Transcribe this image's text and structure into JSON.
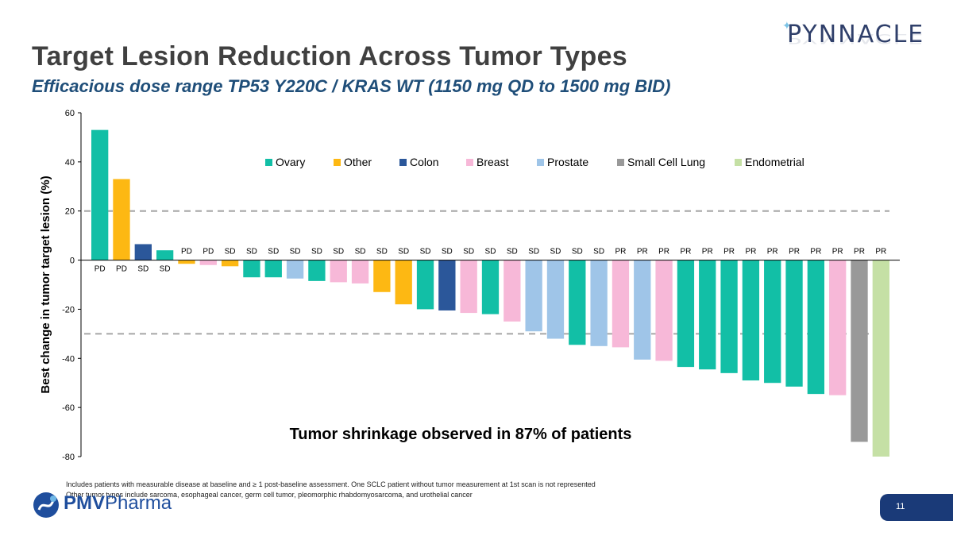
{
  "page": {
    "title": "Target Lesion Reduction Across Tumor Types",
    "subtitle": "Efficacious dose range TP53 Y220C / KRAS WT (1150 mg QD to 1500 mg BID)",
    "footnote_1": "Includes patients with measurable disease at baseline and ≥ 1 post-baseline assessment. One SCLC patient without tumor measurement at 1st scan is not represented",
    "footnote_2": "Other tumor types include sarcoma, esophageal cancer, germ cell tumor, pleomorphic rhabdomyosarcoma, and urothelial cancer",
    "page_number": "11",
    "logo_top": "PYNNACLE",
    "logo_bottom_strong": "PMV",
    "logo_bottom_rest": "Pharma"
  },
  "chart_data": {
    "type": "bar",
    "ylabel": "Best change in tumor target lesion (%)",
    "ylim": [
      -80,
      60
    ],
    "yticks": [
      60,
      40,
      20,
      0,
      -20,
      -40,
      -60,
      -80
    ],
    "reference_lines": [
      20,
      -30
    ],
    "annotation": "Tumor shrinkage observed in 87% of patients",
    "legend": [
      {
        "name": "Ovary",
        "color": "#12bfa6"
      },
      {
        "name": "Other",
        "color": "#fdb813"
      },
      {
        "name": "Colon",
        "color": "#2b579a"
      },
      {
        "name": "Breast",
        "color": "#f7b8d8"
      },
      {
        "name": "Prostate",
        "color": "#9fc5e8"
      },
      {
        "name": "Small Cell Lung",
        "color": "#999999"
      },
      {
        "name": "Endometrial",
        "color": "#c5e0a5"
      }
    ],
    "bars": [
      {
        "value": 53,
        "type": "Ovary",
        "response": "PD"
      },
      {
        "value": 33,
        "type": "Other",
        "response": "PD"
      },
      {
        "value": 6.5,
        "type": "Colon",
        "response": "SD"
      },
      {
        "value": 4,
        "type": "Ovary",
        "response": "SD"
      },
      {
        "value": -1.5,
        "type": "Other",
        "response": "PD"
      },
      {
        "value": -2,
        "type": "Breast",
        "response": "PD"
      },
      {
        "value": -2.5,
        "type": "Other",
        "response": "SD"
      },
      {
        "value": -7,
        "type": "Ovary",
        "response": "SD"
      },
      {
        "value": -7,
        "type": "Ovary",
        "response": "SD"
      },
      {
        "value": -7.5,
        "type": "Prostate",
        "response": "SD"
      },
      {
        "value": -8.5,
        "type": "Ovary",
        "response": "SD"
      },
      {
        "value": -9,
        "type": "Breast",
        "response": "SD"
      },
      {
        "value": -9.5,
        "type": "Breast",
        "response": "SD"
      },
      {
        "value": -13,
        "type": "Other",
        "response": "SD"
      },
      {
        "value": -18,
        "type": "Other",
        "response": "SD"
      },
      {
        "value": -20,
        "type": "Ovary",
        "response": "SD"
      },
      {
        "value": -20.5,
        "type": "Colon",
        "response": "SD"
      },
      {
        "value": -21.5,
        "type": "Breast",
        "response": "SD"
      },
      {
        "value": -22,
        "type": "Ovary",
        "response": "SD"
      },
      {
        "value": -25,
        "type": "Breast",
        "response": "SD"
      },
      {
        "value": -29,
        "type": "Prostate",
        "response": "SD"
      },
      {
        "value": -32,
        "type": "Prostate",
        "response": "SD"
      },
      {
        "value": -34.5,
        "type": "Ovary",
        "response": "SD"
      },
      {
        "value": -35,
        "type": "Prostate",
        "response": "SD"
      },
      {
        "value": -35.5,
        "type": "Breast",
        "response": "PR"
      },
      {
        "value": -40.5,
        "type": "Prostate",
        "response": "PR"
      },
      {
        "value": -41,
        "type": "Breast",
        "response": "PR"
      },
      {
        "value": -43.5,
        "type": "Ovary",
        "response": "PR"
      },
      {
        "value": -44.5,
        "type": "Ovary",
        "response": "PR"
      },
      {
        "value": -46,
        "type": "Ovary",
        "response": "PR"
      },
      {
        "value": -49,
        "type": "Ovary",
        "response": "PR"
      },
      {
        "value": -50,
        "type": "Ovary",
        "response": "PR"
      },
      {
        "value": -51.5,
        "type": "Ovary",
        "response": "PR"
      },
      {
        "value": -54.5,
        "type": "Ovary",
        "response": "PR"
      },
      {
        "value": -55,
        "type": "Breast",
        "response": "PR"
      },
      {
        "value": -74,
        "type": "Small Cell Lung",
        "response": "PR"
      },
      {
        "value": -80,
        "type": "Endometrial",
        "response": "PR"
      }
    ]
  }
}
